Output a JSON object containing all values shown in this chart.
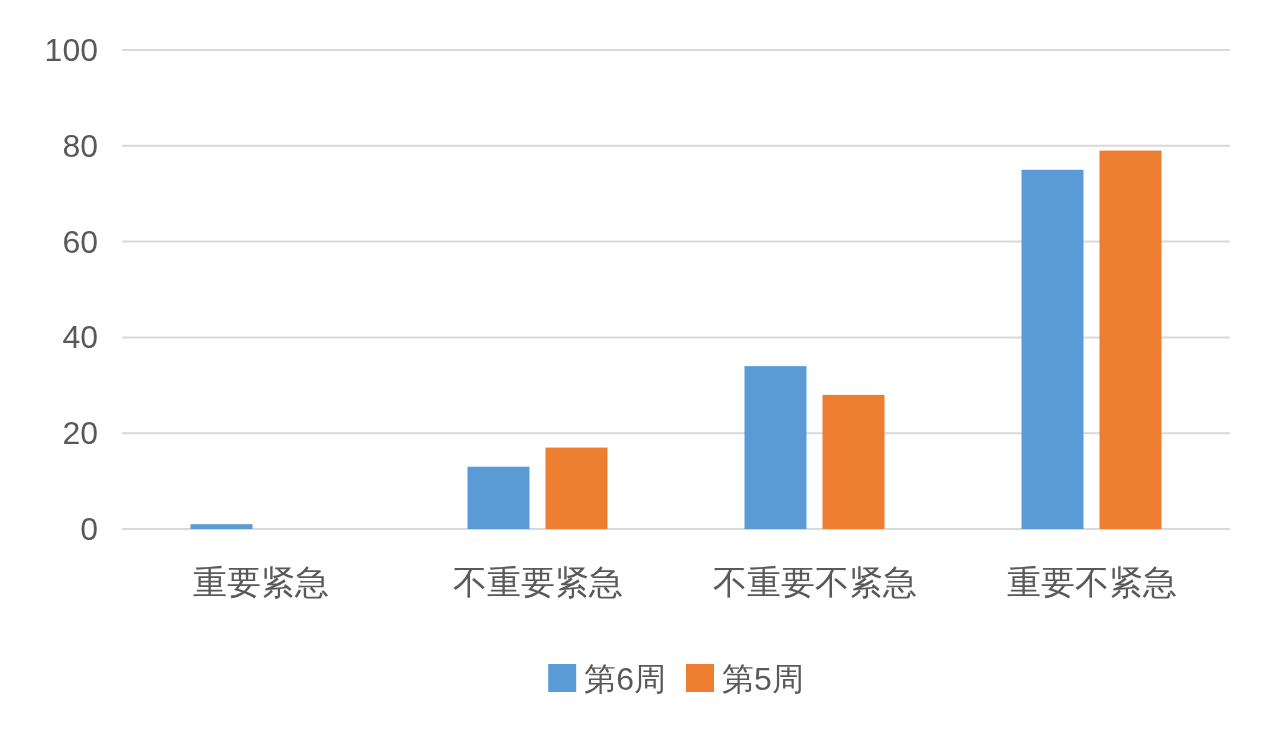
{
  "chart_data": {
    "type": "bar",
    "categories": [
      "重要紧急",
      "不重要紧急",
      "不重要不紧急",
      "重要不紧急"
    ],
    "series": [
      {
        "name": "第6周",
        "color": "#5b9bd5",
        "values": [
          1,
          13,
          34,
          75
        ]
      },
      {
        "name": "第5周",
        "color": "#ed7d31",
        "values": [
          0,
          17,
          28,
          79
        ]
      }
    ],
    "ylim": [
      0,
      100
    ],
    "yticks": [
      0,
      20,
      40,
      60,
      80,
      100
    ],
    "grid": "y",
    "legend": "bottom"
  }
}
